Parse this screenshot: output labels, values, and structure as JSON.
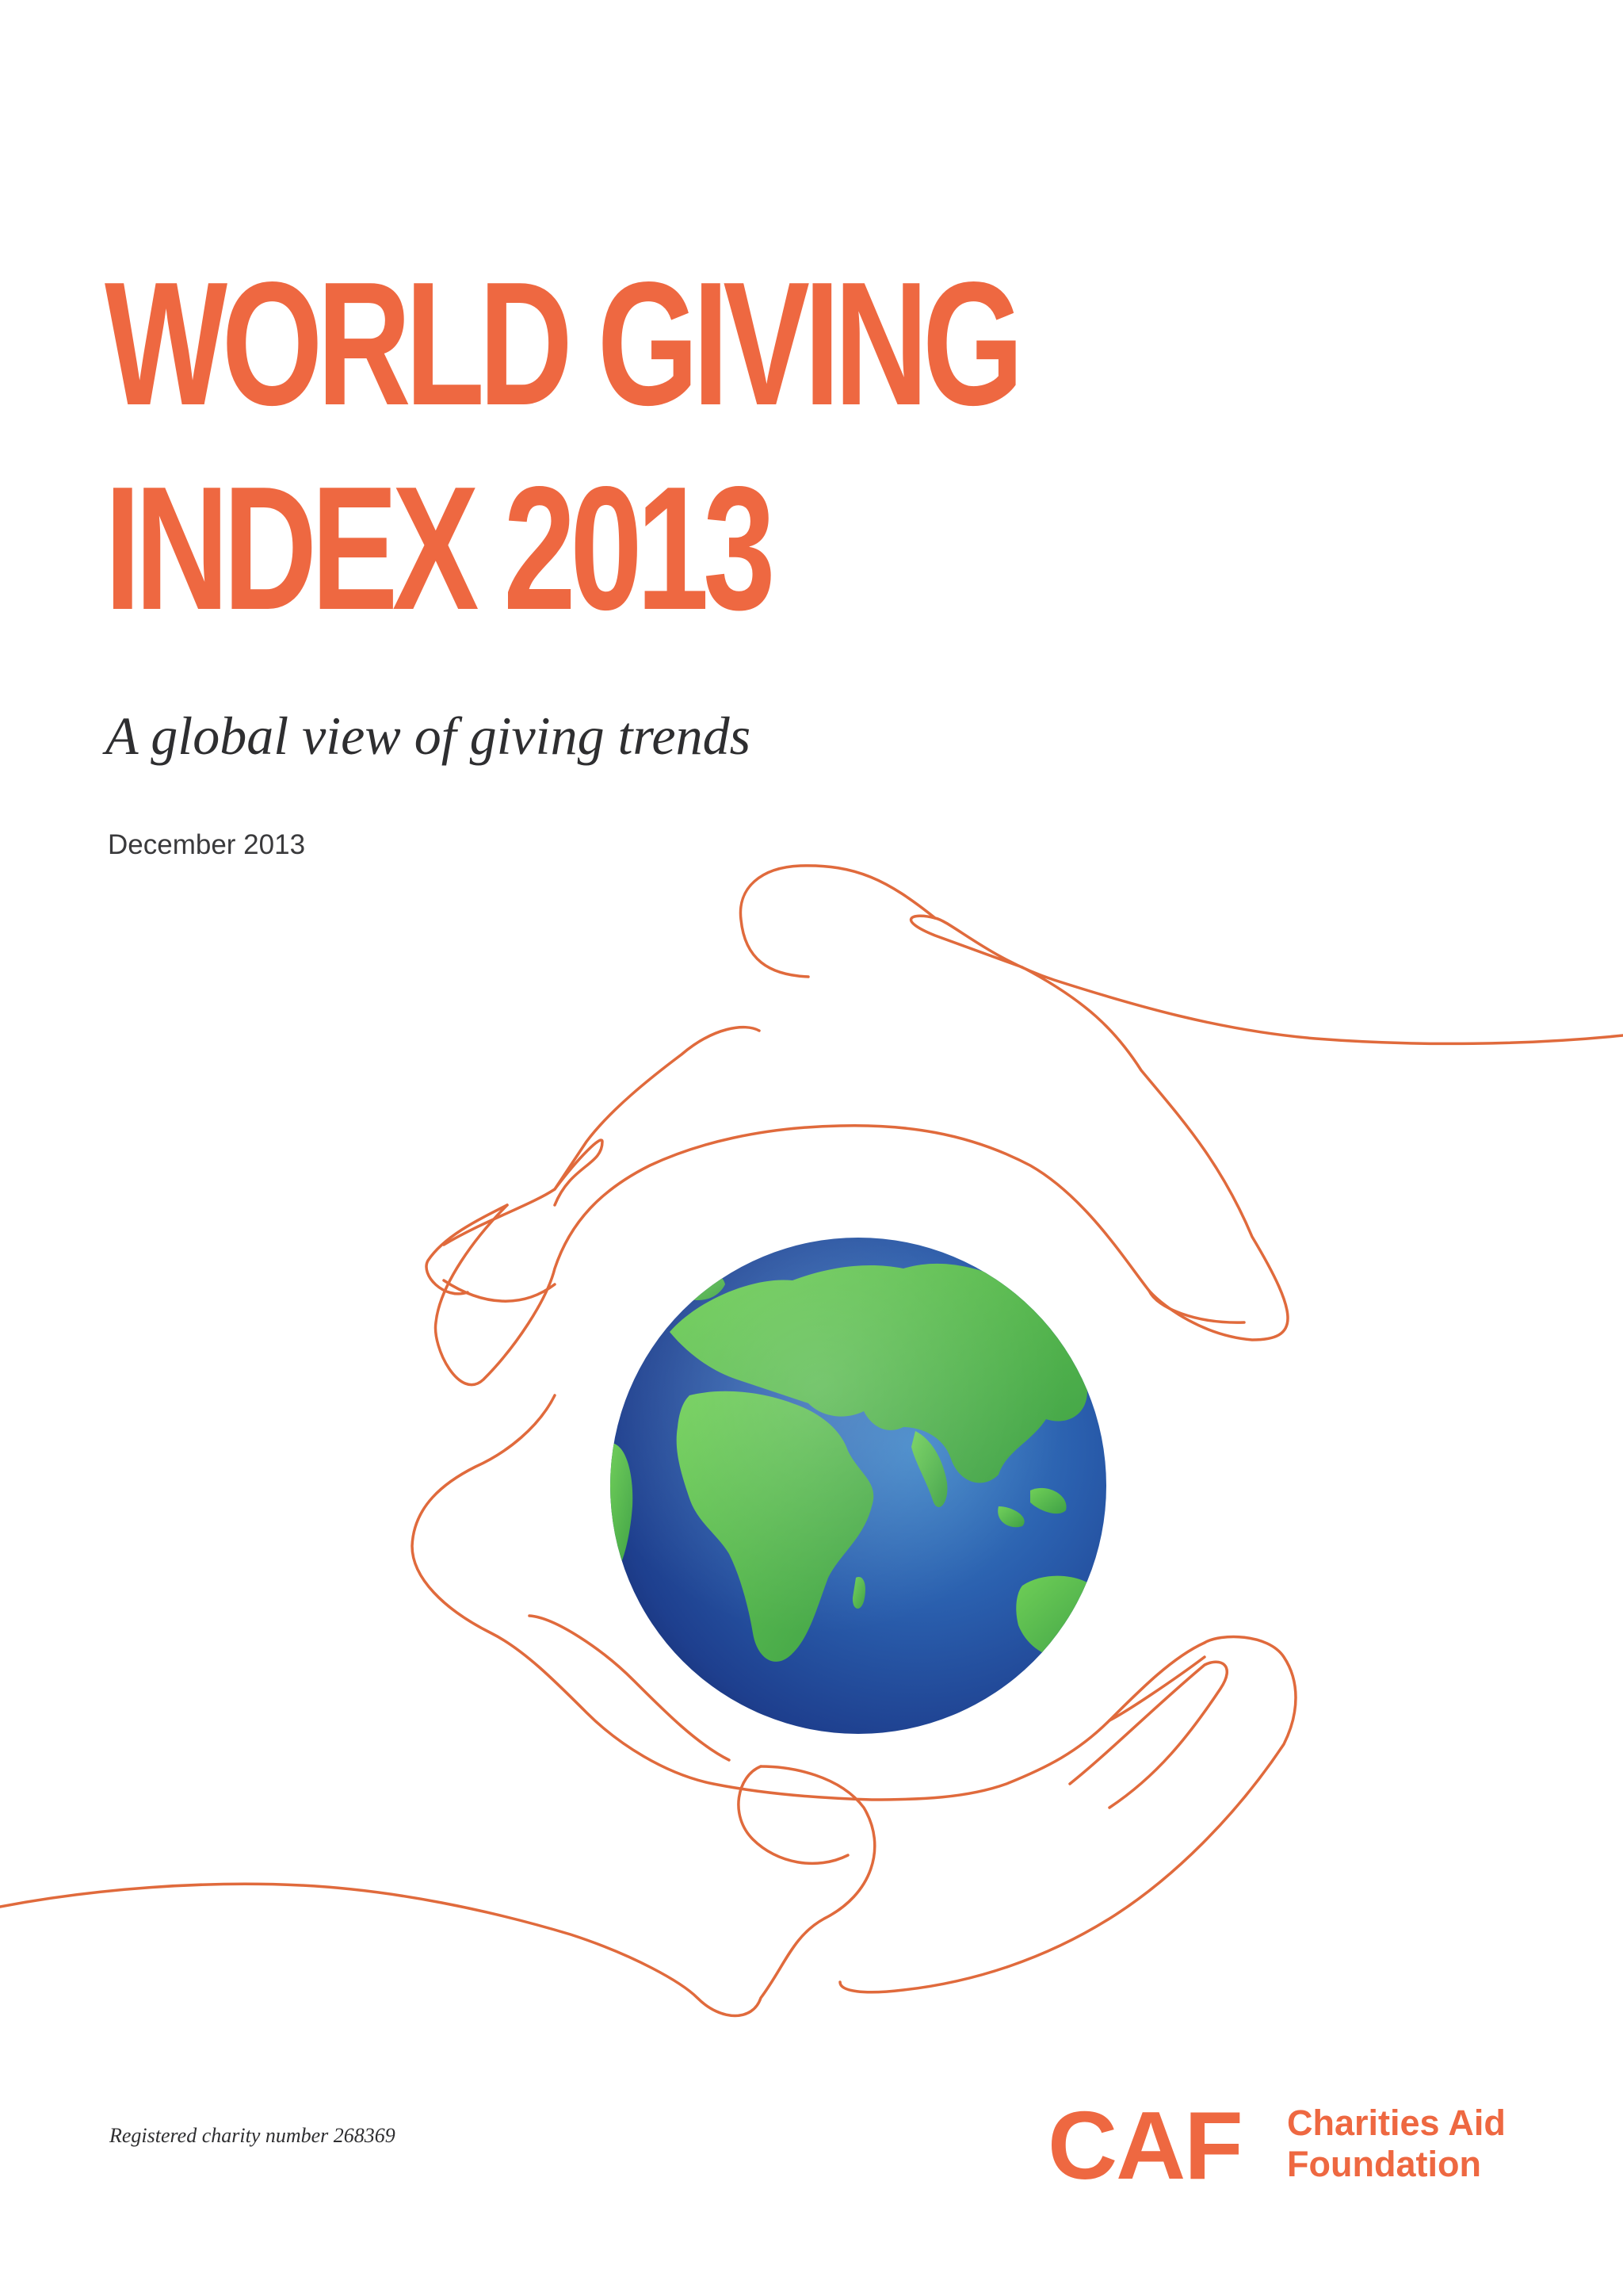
{
  "cover": {
    "title_line1": "WORLD GIVING",
    "title_line2": "INDEX 2013",
    "subtitle": "A global view of giving trends",
    "date": "December 2013",
    "accent_color": "#ee6841",
    "globe_land_color": "#55b948",
    "globe_ocean_color": "#1f4f9e"
  },
  "illustration": {
    "hands_icon": "two-cupped-hands-line-icon",
    "globe_icon": "earth-globe-icon"
  },
  "footer": {
    "charity_note": "Registered charity number 268369",
    "logo_mark": "CAF",
    "logo_line1": "Charities Aid",
    "logo_line2": "Foundation"
  }
}
